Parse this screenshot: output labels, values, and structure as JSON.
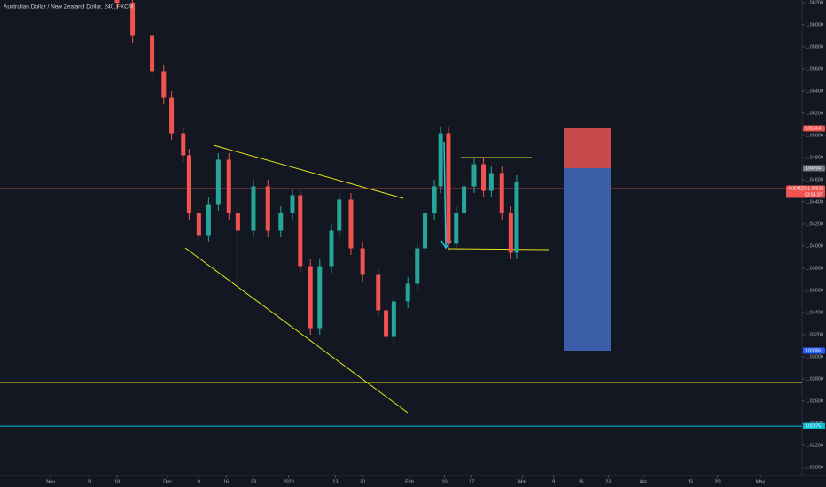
{
  "chart_data": {
    "type": "candlestick",
    "title": "Australian Dollar / New Zealand Dollar, 240, FXCM",
    "up_color": "#26a69a",
    "down_color": "#ef5350",
    "grid": false,
    "x": [
      17,
      21,
      26,
      29,
      31,
      34,
      35.5,
      38,
      40.5,
      43,
      45.7,
      48,
      52,
      55.7,
      59,
      62,
      64,
      66.6,
      69,
      72,
      74,
      77,
      80,
      84,
      86,
      88,
      91.6,
      94,
      96,
      98.4,
      100,
      102,
      104,
      106,
      108.6,
      111,
      113,
      115.7,
      118,
      119.5
    ],
    "open": [
      1.0632,
      1.062,
      1.059,
      1.0558,
      1.0534,
      1.0502,
      1.0482,
      1.043,
      1.041,
      1.0438,
      1.0478,
      1.043,
      1.0414,
      1.0454,
      1.0414,
      1.043,
      1.0446,
      1.0382,
      1.0326,
      1.0382,
      1.0414,
      1.0442,
      1.0398,
      1.0374,
      1.0342,
      1.0318,
      1.035,
      1.0366,
      1.0398,
      1.043,
      1.0454,
      1.0502,
      1.0402,
      1.043,
      1.0454,
      1.0474,
      1.045,
      1.0466,
      1.043,
      1.0394
    ],
    "high": [
      1.0638,
      1.0626,
      1.0596,
      1.0564,
      1.054,
      1.0508,
      1.0488,
      1.0436,
      1.0444,
      1.0484,
      1.0484,
      1.0436,
      1.046,
      1.046,
      1.0436,
      1.0452,
      1.0452,
      1.0388,
      1.0388,
      1.042,
      1.0448,
      1.0448,
      1.0404,
      1.038,
      1.0348,
      1.0356,
      1.0372,
      1.0404,
      1.0436,
      1.046,
      1.0508,
      1.0508,
      1.0436,
      1.046,
      1.048,
      1.048,
      1.0472,
      1.0472,
      1.0436,
      1.0464
    ],
    "low": [
      1.0614,
      1.0584,
      1.0552,
      1.0528,
      1.0496,
      1.0476,
      1.0424,
      1.0404,
      1.0404,
      1.0432,
      1.0424,
      1.0366,
      1.0408,
      1.0408,
      1.0408,
      1.0424,
      1.0376,
      1.032,
      1.032,
      1.0376,
      1.0408,
      1.0392,
      1.0368,
      1.0336,
      1.0312,
      1.0312,
      1.0344,
      1.036,
      1.0392,
      1.0424,
      1.0448,
      1.0396,
      1.0396,
      1.0424,
      1.0448,
      1.0444,
      1.0444,
      1.0424,
      1.0388,
      1.0388
    ],
    "close": [
      1.062,
      1.059,
      1.0558,
      1.0534,
      1.0502,
      1.0482,
      1.043,
      1.041,
      1.0438,
      1.0478,
      1.043,
      1.0414,
      1.0454,
      1.0414,
      1.043,
      1.0446,
      1.0382,
      1.0326,
      1.0382,
      1.0414,
      1.0442,
      1.0398,
      1.0374,
      1.0342,
      1.0318,
      1.035,
      1.0366,
      1.0398,
      1.043,
      1.0454,
      1.0502,
      1.0402,
      1.043,
      1.0454,
      1.0474,
      1.045,
      1.0466,
      1.043,
      1.0394,
      1.0458
    ],
    "xlim": [
      -13,
      192.7
    ],
    "ylim": [
      1.01928,
      1.06224
    ],
    "xticks": [
      {
        "value": 0,
        "label": "Nov"
      },
      {
        "value": 10,
        "label": "11"
      },
      {
        "value": 17,
        "label": "18"
      },
      {
        "value": 30,
        "label": "Dec"
      },
      {
        "value": 38,
        "label": "9"
      },
      {
        "value": 45,
        "label": "16"
      },
      {
        "value": 52,
        "label": "23"
      },
      {
        "value": 61,
        "label": "2020"
      },
      {
        "value": 73,
        "label": "13"
      },
      {
        "value": 80,
        "label": "20"
      },
      {
        "value": 92,
        "label": "Feb"
      },
      {
        "value": 101,
        "label": "10"
      },
      {
        "value": 108,
        "label": "17"
      },
      {
        "value": 121,
        "label": "Mar"
      },
      {
        "value": 129,
        "label": "9"
      },
      {
        "value": 136,
        "label": "16"
      },
      {
        "value": 143,
        "label": "23"
      },
      {
        "value": 152,
        "label": "Apr"
      },
      {
        "value": 164,
        "label": "13"
      },
      {
        "value": 171,
        "label": "20"
      },
      {
        "value": 182,
        "label": "May"
      }
    ],
    "yticks": [
      {
        "value": 1.062,
        "label": "1.06200"
      },
      {
        "value": 1.06,
        "label": "1.06000"
      },
      {
        "value": 1.058,
        "label": "1.05800"
      },
      {
        "value": 1.056,
        "label": "1.05600"
      },
      {
        "value": 1.054,
        "label": "1.05400"
      },
      {
        "value": 1.052,
        "label": "1.05200"
      },
      {
        "value": 1.05,
        "label": "1.05000"
      },
      {
        "value": 1.048,
        "label": "1.04800"
      },
      {
        "value": 1.046,
        "label": "1.04600"
      },
      {
        "value": 1.044,
        "label": "1.04400"
      },
      {
        "value": 1.042,
        "label": "1.04200"
      },
      {
        "value": 1.04,
        "label": "1.04000"
      },
      {
        "value": 1.038,
        "label": "1.03800"
      },
      {
        "value": 1.036,
        "label": "1.03600"
      },
      {
        "value": 1.034,
        "label": "1.03400"
      },
      {
        "value": 1.032,
        "label": "1.03200"
      },
      {
        "value": 1.03,
        "label": "1.03000"
      },
      {
        "value": 1.028,
        "label": "1.02800"
      },
      {
        "value": 1.026,
        "label": "1.02600"
      },
      {
        "value": 1.024,
        "label": "1.02400"
      },
      {
        "value": 1.022,
        "label": "1.02200"
      },
      {
        "value": 1.02,
        "label": "1.02000"
      }
    ],
    "levels": [
      {
        "value": 1.05064,
        "label": "1.05064",
        "color": "#ef5350"
      },
      {
        "value": 1.04704,
        "label": "1.04704",
        "color": "#787b86"
      },
      {
        "value": 1.0452,
        "label": "AUDNZD 1.04520",
        "color": "#ef5350",
        "note": "03:54:37"
      },
      {
        "value": 1.03056,
        "label": "1.03056",
        "color": "#2962ff"
      },
      {
        "value": 1.02375,
        "label": "1.02375",
        "color": "#00bcd4"
      }
    ],
    "position": {
      "target": 1.05064,
      "entry": 1.04704,
      "stop": 1.03056,
      "profit_color": "#c64a4a",
      "loss_color": "#3a5fa8"
    },
    "hlines": [
      {
        "value": 1.02768,
        "color": "#e6e619"
      },
      {
        "value": 1.02375,
        "color": "#00bcd4"
      },
      {
        "value": 1.0452,
        "color": "#b23a3a"
      }
    ]
  }
}
